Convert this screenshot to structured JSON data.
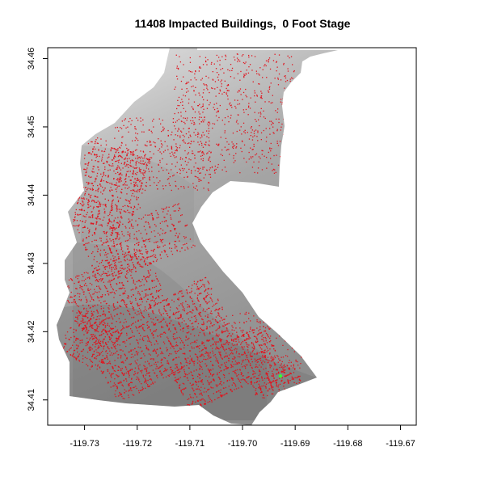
{
  "map": {
    "title": "11408 Impacted Buildings,  0 Foot Stage",
    "x_ticks": [
      "-119.73",
      "-119.72",
      "-119.71",
      "-119.70",
      "-119.69",
      "-119.68",
      "-119.67"
    ],
    "y_ticks": [
      "34.41",
      "34.42",
      "34.43",
      "34.44",
      "34.45",
      "34.46"
    ],
    "x_range": [
      -119.737,
      -119.667
    ],
    "y_range": [
      34.4063,
      34.4616
    ],
    "gauge_marker": {
      "lon": -119.6928,
      "lat": 34.4135,
      "color": "#33ff33"
    },
    "colors": {
      "buildings": "#e0141e",
      "terrain_dark": "#8c8c8c",
      "terrain_light": "#e8e8e8"
    }
  }
}
